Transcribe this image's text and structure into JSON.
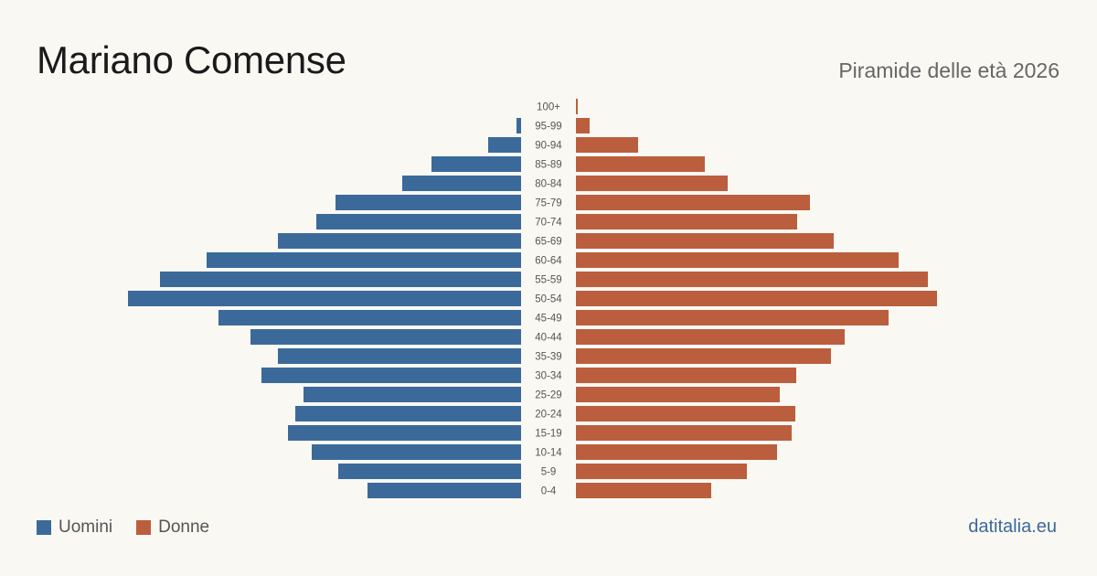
{
  "header": {
    "title": "Mariano Comense",
    "subtitle": "Piramide delle età 2026"
  },
  "legend": {
    "men_label": "Uomini",
    "women_label": "Donne"
  },
  "brand": "datitalia.eu",
  "colors": {
    "men": "#3b6a9a",
    "women": "#bb5e3d",
    "background": "#faf8f3"
  },
  "chart_data": {
    "type": "bar",
    "orientation": "horizontal",
    "title": "Piramide delle età 2026",
    "categories": [
      "100+",
      "95-99",
      "90-94",
      "85-89",
      "80-84",
      "75-79",
      "70-74",
      "65-69",
      "60-64",
      "55-59",
      "50-54",
      "45-49",
      "40-44",
      "35-39",
      "30-34",
      "25-29",
      "20-24",
      "15-19",
      "10-14",
      "5-9",
      "0-4"
    ],
    "series": [
      {
        "name": "Uomini",
        "values": [
          0,
          5,
          36,
          98,
          130,
          203,
          224,
          266,
          344,
          395,
          430,
          331,
          296,
          266,
          284,
          238,
          247,
          255,
          229,
          200,
          168
        ]
      },
      {
        "name": "Donne",
        "values": [
          2,
          15,
          68,
          141,
          166,
          256,
          242,
          282,
          353,
          385,
          395,
          342,
          294,
          279,
          241,
          223,
          240,
          236,
          220,
          187,
          148
        ]
      }
    ],
    "legend_position": "bottom-left",
    "grid": false
  }
}
